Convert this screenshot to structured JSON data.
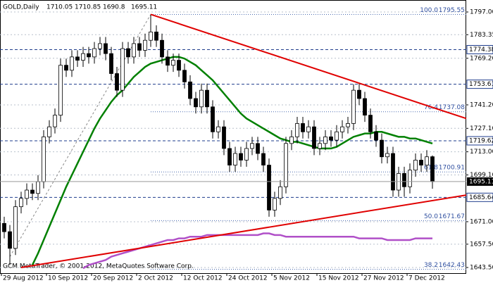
{
  "chart_data": {
    "type": "candlestick",
    "symbol": "GOLD,Daily",
    "footer": "GCM MetaTrader, © 2001-2012, MetaQuotes Software Corp.",
    "categories": [
      "29 Aug 2012",
      null,
      null,
      null,
      null,
      null,
      null,
      null,
      "10 Sep 2012",
      null,
      null,
      null,
      null,
      null,
      null,
      null,
      "20 Sep 2012",
      null,
      null,
      null,
      null,
      null,
      null,
      null,
      "2 Oct 2012",
      null,
      null,
      null,
      null,
      null,
      null,
      null,
      "12 Oct 2012",
      null,
      null,
      null,
      null,
      null,
      null,
      null,
      "24 Oct 2012",
      null,
      null,
      null,
      null,
      null,
      null,
      null,
      "5 Nov 2012",
      null,
      null,
      null,
      null,
      null,
      null,
      null,
      "15 Nov 2012",
      null,
      null,
      null,
      null,
      null,
      null,
      null,
      "27 Nov 2012",
      null,
      null,
      null,
      null,
      null,
      null,
      null,
      "7 Dec 2012",
      null,
      null,
      null,
      null
    ],
    "open": [
      1670,
      1665,
      1655,
      1680,
      1685,
      1690,
      1688,
      1695,
      1722,
      1728,
      1735,
      1765,
      1762,
      1770,
      1768,
      1772,
      1770,
      1775,
      1778,
      1772,
      1760,
      1750,
      1775,
      1770,
      1778,
      1774,
      1780,
      1785,
      1780,
      1770,
      1765,
      1768,
      1762,
      1755,
      1745,
      1740,
      1750,
      1740,
      1725,
      1728,
      1715,
      1705,
      1712,
      1708,
      1715,
      1718,
      1712,
      1705,
      1678,
      1685,
      1692,
      1718,
      1722,
      1730,
      1725,
      1728,
      1715,
      1718,
      1722,
      1720,
      1725,
      1728,
      1730,
      1750,
      1745,
      1735,
      1725,
      1720,
      1710,
      1712,
      1690,
      1700,
      1692,
      1702,
      1708,
      1705,
      1710.05
    ],
    "high": [
      1674,
      1669,
      1684,
      1689,
      1694,
      1694,
      1699,
      1726,
      1732,
      1739,
      1769,
      1769,
      1774,
      1774,
      1776,
      1776,
      1779,
      1782,
      1782,
      1776,
      1764,
      1779,
      1779,
      1782,
      1782,
      1784,
      1795.55,
      1789,
      1784,
      1774,
      1772,
      1772,
      1766,
      1759,
      1749,
      1754,
      1754,
      1744,
      1732,
      1732,
      1719,
      1716,
      1716,
      1719,
      1722,
      1722,
      1716,
      1709,
      1689,
      1696,
      1722,
      1726,
      1734,
      1734,
      1732,
      1732,
      1722,
      1726,
      1726,
      1729,
      1732,
      1734,
      1753.61,
      1754,
      1749,
      1739,
      1729,
      1724,
      1716,
      1716,
      1704,
      1704,
      1706,
      1712,
      1712,
      1714,
      1710.85
    ],
    "low": [
      1661,
      1645,
      1651,
      1676,
      1681,
      1684,
      1684,
      1691,
      1718,
      1724,
      1731,
      1758,
      1758,
      1764,
      1764,
      1766,
      1766,
      1771,
      1768,
      1756,
      1746,
      1746,
      1766,
      1766,
      1770,
      1770,
      1776,
      1776,
      1766,
      1761,
      1761,
      1758,
      1751,
      1741,
      1736,
      1736,
      1736,
      1721,
      1721,
      1711,
      1701,
      1701,
      1704,
      1704,
      1711,
      1708,
      1701,
      1674,
      1674,
      1681,
      1688,
      1714,
      1718,
      1721,
      1721,
      1711,
      1711,
      1714,
      1716,
      1716,
      1721,
      1724,
      1726,
      1741,
      1731,
      1721,
      1716,
      1706,
      1706,
      1686,
      1686,
      1686,
      1688,
      1698,
      1701,
      1701,
      1690.8
    ],
    "close": [
      1665,
      1655,
      1680,
      1685,
      1690,
      1688,
      1695,
      1722,
      1728,
      1735,
      1765,
      1762,
      1770,
      1768,
      1772,
      1770,
      1775,
      1778,
      1772,
      1760,
      1750,
      1775,
      1770,
      1778,
      1774,
      1780,
      1785,
      1780,
      1770,
      1765,
      1768,
      1762,
      1755,
      1745,
      1740,
      1750,
      1740,
      1725,
      1728,
      1715,
      1705,
      1712,
      1708,
      1715,
      1718,
      1712,
      1705,
      1678,
      1685,
      1692,
      1718,
      1722,
      1730,
      1725,
      1728,
      1715,
      1718,
      1722,
      1720,
      1725,
      1728,
      1730,
      1750,
      1745,
      1735,
      1725,
      1720,
      1710,
      1712,
      1690,
      1700,
      1692,
      1702,
      1708,
      1705,
      1710,
      1695.11
    ],
    "series": [
      {
        "color": "#008000",
        "values": [
          null,
          null,
          null,
          null,
          null,
          1645,
          1652,
          1660,
          1668,
          1676,
          1684,
          1692,
          1699,
          1706,
          1713,
          1720,
          1727,
          1733,
          1738,
          1743,
          1747,
          1750,
          1754,
          1758,
          1761,
          1764,
          1766,
          1767,
          1768,
          1769,
          1770,
          1770,
          1769,
          1767,
          1765,
          1762,
          1759,
          1756,
          1752,
          1748,
          1744,
          1740,
          1736,
          1733,
          1731,
          1729,
          1727,
          1725,
          1723,
          1721,
          1720,
          1719,
          1719,
          1718,
          1717,
          1716,
          1715,
          1715,
          1715,
          1716,
          1718,
          1720,
          1722,
          1723,
          1724,
          1724,
          1725,
          1725,
          1724,
          1723,
          1722,
          1722,
          1721,
          1721,
          1720,
          1719,
          1718
        ]
      },
      {
        "color": "#b050c8",
        "values": [
          null,
          null,
          null,
          null,
          null,
          null,
          null,
          null,
          null,
          null,
          null,
          null,
          null,
          null,
          1643,
          1645,
          1646,
          1647,
          1648,
          1650,
          1651,
          1652,
          1653,
          1654,
          1655,
          1656,
          1657,
          1658,
          1659,
          1660,
          1660,
          1661,
          1661,
          1662,
          1662,
          1662,
          1663,
          1663,
          1663,
          1663,
          1663,
          1663,
          1663,
          1663,
          1663,
          1663,
          1664,
          1664,
          1663,
          1663,
          1662,
          1662,
          1662,
          1662,
          1662,
          1662,
          1662,
          1662,
          1662,
          1662,
          1662,
          1662,
          1662,
          1661,
          1661,
          1661,
          1661,
          1661,
          1660,
          1660,
          1660,
          1660,
          1660,
          1661,
          1661,
          1661,
          1661
        ]
      }
    ],
    "trendlines": [
      {
        "color": "#e00000",
        "x": [
          26,
          82
        ],
        "y": [
          1795.55,
          1733
        ]
      },
      {
        "color": "#e00000",
        "x": [
          3,
          82
        ],
        "y": [
          1643.5,
          1687
        ]
      }
    ],
    "fib_line": {
      "x": [
        1,
        26
      ],
      "y": [
        1650,
        1795.55
      ]
    },
    "fib_levels": [
      {
        "label": "100.0",
        "value": 1795.55
      },
      {
        "label": "76.4",
        "value": 1737.08
      },
      {
        "label": "61.8",
        "value": 1700.91
      },
      {
        "label": "50.0",
        "value": 1671.67
      },
      {
        "label": "38.2",
        "value": 1642.43
      }
    ],
    "levels": [
      1774.38,
      1753.61,
      1719.62,
      1685.64
    ],
    "ylim": [
      1640.1,
      1804.2
    ],
    "yticks": [
      {
        "value": 1797,
        "label": "1797.00"
      },
      {
        "value": 1783.35,
        "label": "1783.35"
      },
      {
        "value": 1769.2,
        "label": "1769.20"
      },
      {
        "value": 1741.2,
        "label": "1741.20"
      },
      {
        "value": 1727.1,
        "label": "1727.10"
      },
      {
        "value": 1713,
        "label": "1713.00"
      },
      {
        "value": 1699.1,
        "label": "1699.10"
      },
      {
        "value": 1671,
        "label": "1671.00"
      },
      {
        "value": 1657.5,
        "label": "1657.50"
      },
      {
        "value": 1643.5,
        "label": "1643.50"
      }
    ],
    "grid": true
  }
}
